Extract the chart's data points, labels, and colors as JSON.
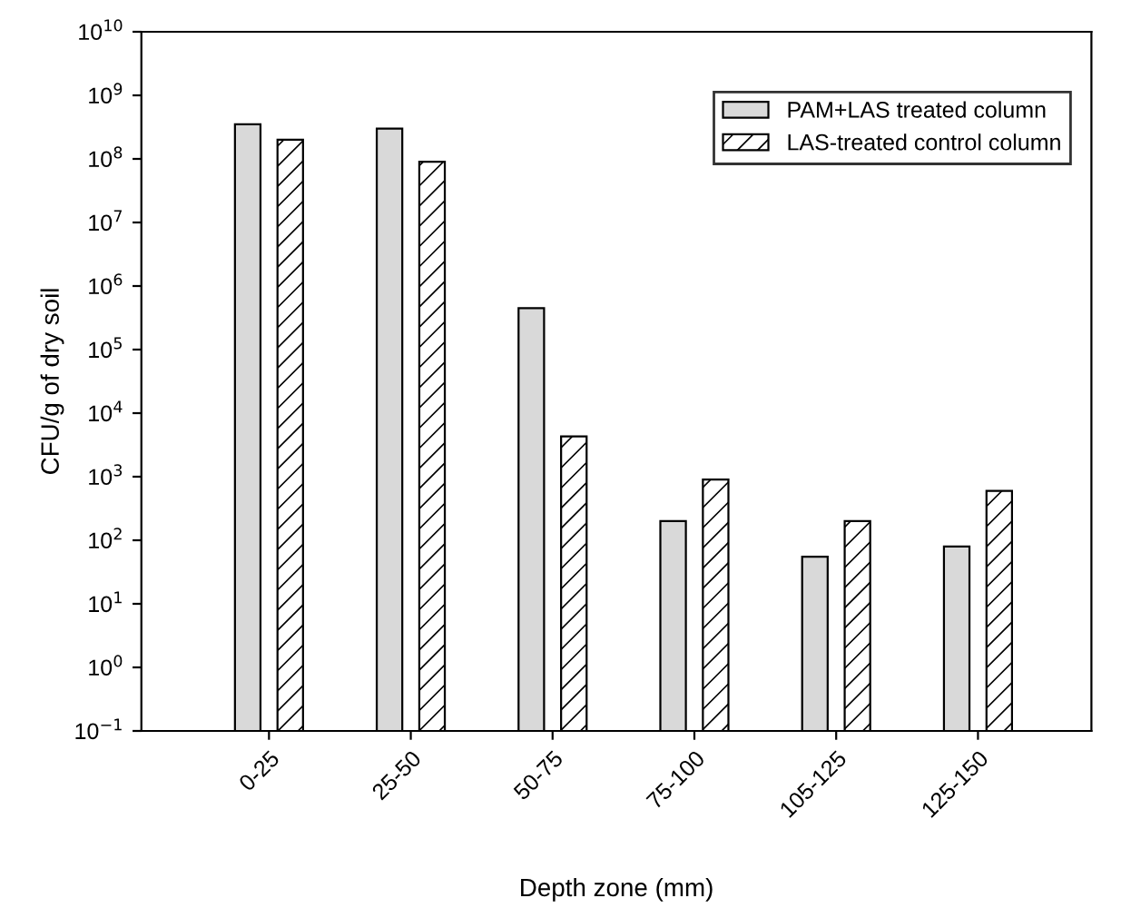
{
  "chart_data": {
    "type": "bar",
    "xlabel": "Depth zone (mm)",
    "ylabel": "CFU/g of dry soil",
    "categories": [
      "0-25",
      "25-50",
      "50-75",
      "75-100",
      "105-125",
      "125-150"
    ],
    "series": [
      {
        "name": "PAM+LAS treated column",
        "color": "#d9d9d9",
        "values": [
          350000000,
          300000000,
          450000,
          200,
          55,
          80
        ]
      },
      {
        "name": "LAS-treated control column",
        "color": "#000000",
        "values": [
          200000000,
          90000000,
          4300,
          900,
          200,
          600
        ]
      }
    ],
    "log": true,
    "ylim": [
      0.1,
      10000000000
    ],
    "yticks": [
      {
        "value": 0.1,
        "label": "10$^{−1}$"
      },
      {
        "value": 1,
        "label": "10$^{0}$"
      },
      {
        "value": 10,
        "label": "10$^{1}$"
      },
      {
        "value": 100,
        "label": "10$^{2}$"
      },
      {
        "value": 1000,
        "label": "10$^{3}$"
      },
      {
        "value": 10000,
        "label": "10$^{4}$"
      },
      {
        "value": 100000,
        "label": "10$^{5}$"
      },
      {
        "value": 1000000,
        "label": "10$^{6}$"
      },
      {
        "value": 10000000,
        "label": "10$^{7}$"
      },
      {
        "value": 100000000,
        "label": "10$^{8}$"
      },
      {
        "value": 1000000000,
        "label": "10$^{9}$"
      },
      {
        "value": 10000000000,
        "label": "10$^{10}$"
      }
    ],
    "legend": "top right",
    "grid": false
  }
}
